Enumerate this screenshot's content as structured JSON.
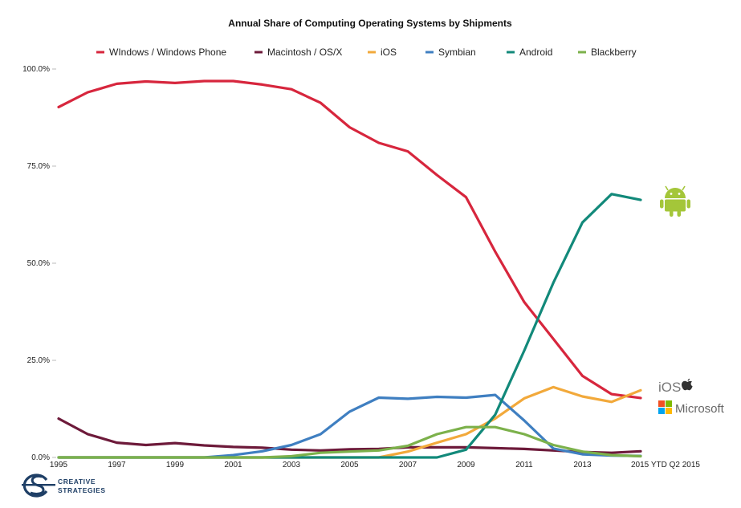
{
  "chart_data": {
    "type": "line",
    "title": "Annual Share of Computing Operating Systems by Shipments",
    "xlabel": "",
    "ylabel": "",
    "ylim": [
      0,
      100
    ],
    "y_ticks": [
      "0.0%",
      "25.0%",
      "50.0%",
      "75.0%",
      "100.0%"
    ],
    "y_tick_values": [
      0,
      25,
      50,
      75,
      100
    ],
    "categories": [
      "1995",
      "1996",
      "1997",
      "1998",
      "1999",
      "2000",
      "2001",
      "2002",
      "2003",
      "2004",
      "2005",
      "2006",
      "2007",
      "2008",
      "2009",
      "2010",
      "2011",
      "2012",
      "2013",
      "2014",
      "2015 YTD Q2 2015"
    ],
    "x_tick_labels": [
      {
        "index": 0,
        "label": "1995"
      },
      {
        "index": 2,
        "label": "1997"
      },
      {
        "index": 4,
        "label": "1999"
      },
      {
        "index": 6,
        "label": "2001"
      },
      {
        "index": 8,
        "label": "2003"
      },
      {
        "index": 10,
        "label": "2005"
      },
      {
        "index": 12,
        "label": "2007"
      },
      {
        "index": 14,
        "label": "2009"
      },
      {
        "index": 16,
        "label": "2011"
      },
      {
        "index": 18,
        "label": "2013"
      },
      {
        "index": 20,
        "label": "2015 YTD Q2 2015"
      }
    ],
    "grid": false,
    "legend_position": "top",
    "series": [
      {
        "name": "WIndows / Windows Phone",
        "color": "#d7263d",
        "values": [
          90.2,
          94.0,
          96.2,
          96.8,
          96.4,
          96.9,
          96.9,
          96.0,
          94.8,
          91.3,
          85.0,
          81.0,
          78.8,
          72.7,
          67.0,
          53.0,
          40.0,
          30.5,
          21.0,
          16.3,
          15.3
        ]
      },
      {
        "name": "Macintosh / OS/X",
        "color": "#6d1a3a",
        "values": [
          10.0,
          6.0,
          3.8,
          3.2,
          3.7,
          3.1,
          2.7,
          2.5,
          2.0,
          1.8,
          2.1,
          2.2,
          2.6,
          2.6,
          2.6,
          2.4,
          2.2,
          1.8,
          1.4,
          1.2,
          1.6
        ]
      },
      {
        "name": "iOS",
        "color": "#f2a93b",
        "values": [
          0,
          0,
          0,
          0,
          0,
          0,
          0,
          0,
          0,
          0,
          0,
          0,
          1.5,
          3.8,
          6.0,
          10.0,
          15.2,
          18.1,
          15.7,
          14.3,
          17.3
        ]
      },
      {
        "name": "Symbian",
        "color": "#3f7fc1",
        "values": [
          0,
          0,
          0,
          0,
          0,
          0,
          0.6,
          1.6,
          3.2,
          6.0,
          11.8,
          15.4,
          15.1,
          15.6,
          15.4,
          16.1,
          9.5,
          2.3,
          0.8,
          0.5,
          0.4
        ]
      },
      {
        "name": "Android",
        "color": "#12897a",
        "values": [
          0,
          0,
          0,
          0,
          0,
          0,
          0,
          0,
          0,
          0,
          0,
          0,
          0,
          0,
          2.0,
          11.0,
          27.5,
          45.0,
          60.5,
          67.8,
          66.3
        ]
      },
      {
        "name": "Blackberry",
        "color": "#7cb14b",
        "values": [
          0,
          0,
          0,
          0,
          0,
          0,
          0,
          0,
          0.3,
          1.2,
          1.5,
          1.8,
          3.0,
          6.0,
          7.8,
          7.8,
          6.0,
          3.2,
          1.5,
          0.6,
          0.3
        ]
      }
    ],
    "annotations": [
      "iOS",
      "Microsoft"
    ]
  },
  "logo": {
    "line1": "CREATIVE",
    "line2": "STRATEGIES"
  },
  "colors": {
    "android_green": "#a4c639",
    "ms_red": "#f25022",
    "ms_green": "#7fba00",
    "ms_blue": "#00a4ef",
    "ms_yellow": "#ffb900",
    "apple_grey": "#333333",
    "logo_navy": "#1f3f66"
  }
}
